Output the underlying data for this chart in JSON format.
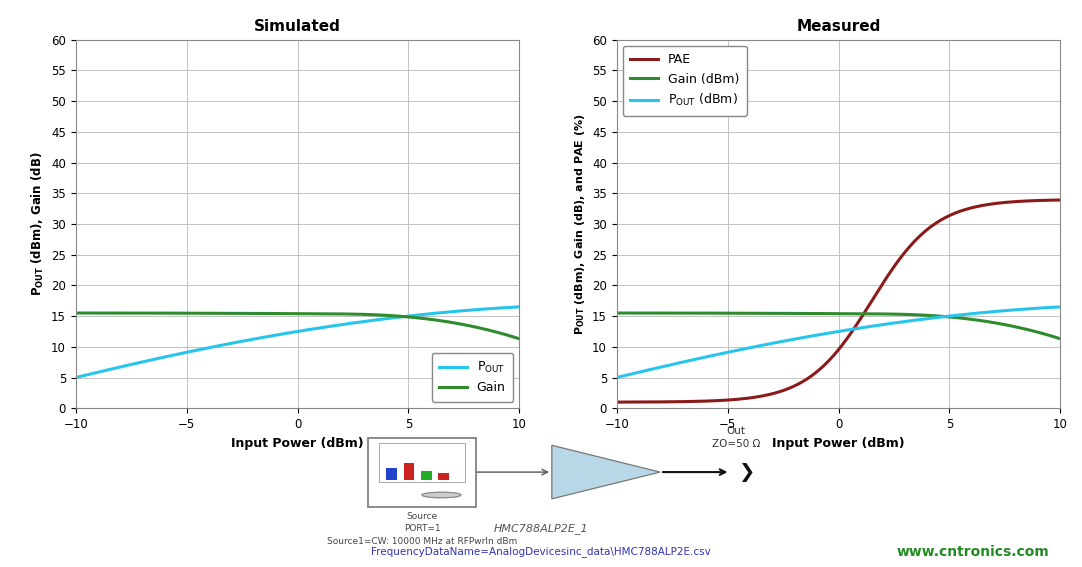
{
  "sim_title": "Simulated",
  "meas_title": "Measured",
  "xlabel": "Input Power (dBm)",
  "sim_ylabel": "Pₒᵁᵀ (dBm), Gain (dB)",
  "meas_ylabel": "Pₒᵁᵀ (dBm), Gain (dB), and PAE (%)",
  "xlim": [
    -10,
    10
  ],
  "ylim": [
    0,
    60
  ],
  "yticks": [
    0,
    5,
    10,
    15,
    20,
    25,
    30,
    35,
    40,
    45,
    50,
    55,
    60
  ],
  "xticks": [
    -10,
    -5,
    0,
    5,
    10
  ],
  "sim_pout_color": "#27C5EC",
  "sim_gain_color": "#2E8B2E",
  "meas_pae_color": "#8B1A1A",
  "meas_gain_color": "#2E8B2E",
  "meas_pout_color": "#27C5EC",
  "grid_color": "#BBBBBB",
  "bg_color": "#FFFFFF",
  "bottom_text1": "HMC788ALP2E_1",
  "bottom_text2": "FrequencyDataName=AnalogDevicesinc_data\\HMC788ALP2E.csv",
  "watermark": "www.cntronics.com"
}
